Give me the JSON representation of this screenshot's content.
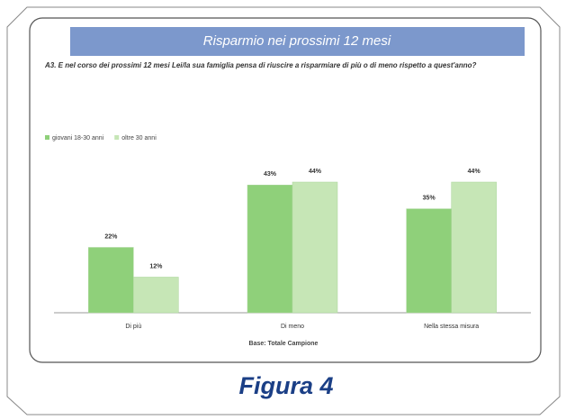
{
  "chart_data": {
    "type": "bar",
    "title": "Risparmio nei prossimi 12 mesi",
    "subtitle": "A3. E nel corso dei prossimi 12 mesi Lei/la sua famiglia pensa di riuscire a risparmiare di più o di meno rispetto a quest'anno?",
    "categories": [
      "Di più",
      "Di meno",
      "Nella stessa misura"
    ],
    "series": [
      {
        "name": "giovani 18-30 anni",
        "color": "#8fd07a",
        "values": [
          22,
          43,
          35
        ],
        "value_labels": [
          "22%",
          "43%",
          "35%"
        ]
      },
      {
        "name": "oltre 30 anni",
        "color": "#c6e6b6",
        "values": [
          12,
          44,
          44
        ],
        "value_labels": [
          "12%",
          "44%",
          "44%"
        ]
      }
    ],
    "xlabel": "Base: Totale Campione",
    "caption": "Figura 4"
  }
}
